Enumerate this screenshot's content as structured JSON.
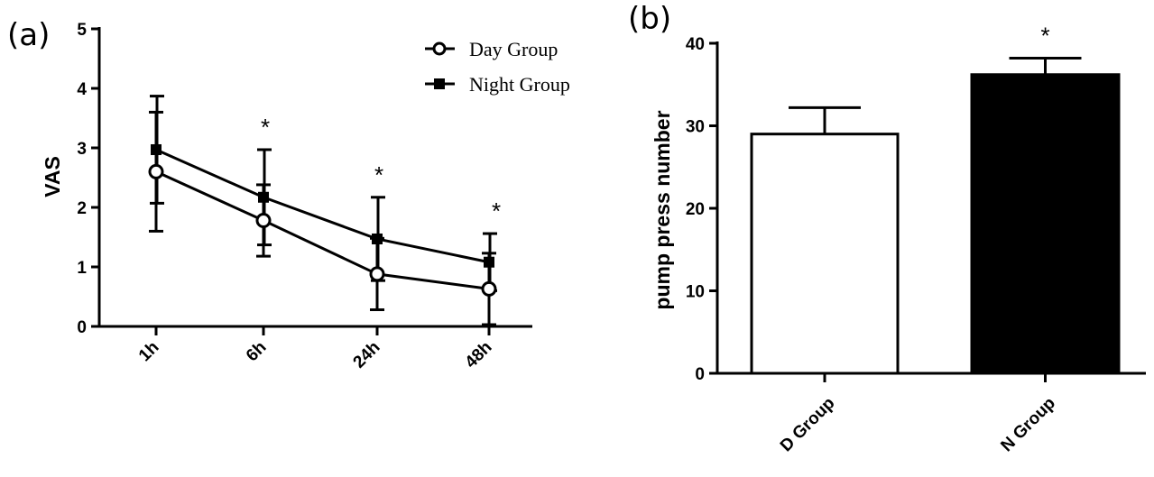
{
  "chart_data": [
    {
      "panel": "(a)",
      "type": "line",
      "title": "",
      "xlabel": "",
      "ylabel": "VAS",
      "categories": [
        "1h",
        "6h",
        "24h",
        "48h"
      ],
      "ylim": [
        0,
        5
      ],
      "yticks": [
        "0",
        "1",
        "2",
        "3",
        "4",
        "5"
      ],
      "grid": false,
      "legend_position": "top-right",
      "series": [
        {
          "name": "Day Group",
          "marker": "open-circle",
          "values": [
            2.6,
            1.78,
            0.88,
            0.63
          ],
          "errors": [
            1.0,
            0.6,
            0.6,
            0.6
          ]
        },
        {
          "name": "Night Group",
          "marker": "filled-square",
          "values": [
            2.97,
            2.17,
            1.47,
            1.08
          ],
          "errors": [
            0.9,
            0.8,
            0.7,
            0.48
          ]
        }
      ],
      "annotations": [
        "",
        "*",
        "*",
        "*"
      ]
    },
    {
      "panel": "(b)",
      "type": "bar",
      "title": "",
      "xlabel": "",
      "ylabel": "pump press number",
      "categories": [
        "D Group",
        "N Group"
      ],
      "values": [
        29,
        36.2
      ],
      "errors": [
        3.2,
        2.0
      ],
      "colors": [
        "#ffffff",
        "#000000"
      ],
      "ylim": [
        0,
        40
      ],
      "yticks": [
        "0",
        "10",
        "20",
        "30",
        "40"
      ],
      "grid": false,
      "annotations": [
        "",
        "*"
      ]
    }
  ]
}
